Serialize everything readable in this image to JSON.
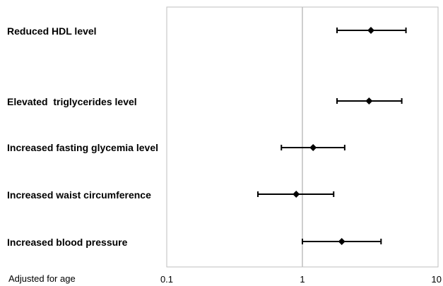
{
  "chart_data": {
    "type": "forest",
    "title": "",
    "xlabel": "",
    "ylabel": "",
    "x_scale": "log",
    "xlim": [
      0.1,
      10
    ],
    "x_ticks": [
      "0.1",
      "1",
      "10"
    ],
    "reference_line": 1,
    "grid": false,
    "note": "Adjusted for age",
    "categories": [
      "Reduced HDL level",
      "Elevated  triglycerides level",
      "Increased fasting glycemia level",
      "Increased waist circumference",
      "Increased blood pressure"
    ],
    "estimates": [
      3.2,
      3.1,
      1.2,
      0.9,
      1.95
    ],
    "lower": [
      1.8,
      1.8,
      0.7,
      0.47,
      1.0
    ],
    "upper": [
      5.8,
      5.4,
      2.05,
      1.7,
      3.8
    ],
    "colors": {
      "point": "#000000",
      "frame": "#bfbfbf",
      "reference": "#bfbfbf"
    }
  }
}
